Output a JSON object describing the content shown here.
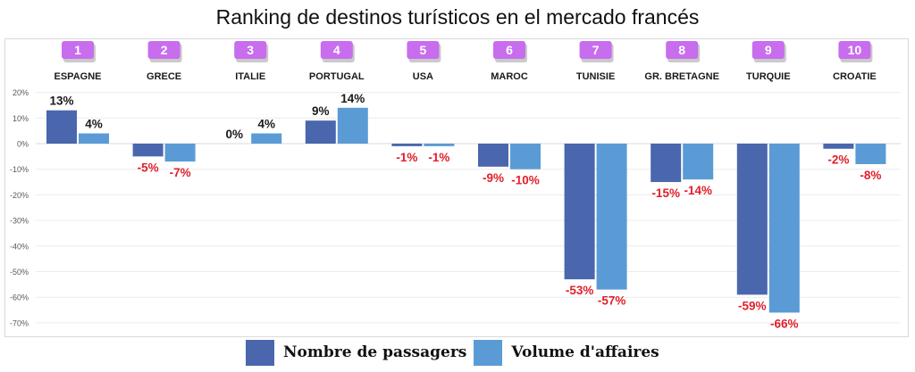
{
  "chart_data": {
    "type": "bar",
    "title": "Ranking de destinos turísticos en el mercado francés",
    "xlabel": "",
    "ylabel": "",
    "ylim": [
      -70,
      20
    ],
    "yticks": [
      20,
      10,
      0,
      -10,
      -20,
      -30,
      -40,
      -50,
      -60,
      -70
    ],
    "ytick_labels": [
      "20%",
      "10%",
      "0%",
      "-10%",
      "-20%",
      "-30%",
      "-40%",
      "-50%",
      "-60%",
      "-70%"
    ],
    "grid": true,
    "legend_position": "bottom",
    "categories": [
      "ESPAGNE",
      "GRECE",
      "ITALIE",
      "PORTUGAL",
      "USA",
      "MAROC",
      "TUNISIE",
      "GR. BRETAGNE",
      "TURQUIE",
      "CROATIE"
    ],
    "ranks": [
      "1",
      "2",
      "3",
      "4",
      "5",
      "6",
      "7",
      "8",
      "9",
      "10"
    ],
    "series": [
      {
        "name": "Nombre de passagers",
        "color": "#4a66ad",
        "values": [
          13,
          -5,
          0,
          9,
          -1,
          -9,
          -53,
          -15,
          -59,
          -2
        ],
        "labels": [
          "13%",
          "-5%",
          "0%",
          "9%",
          "-1%",
          "-9%",
          "-53%",
          "-15%",
          "-59%",
          "-2%"
        ]
      },
      {
        "name": "Volume d'affaires",
        "color": "#5b9bd5",
        "values": [
          4,
          -7,
          4,
          14,
          -1,
          -10,
          -57,
          -14,
          -66,
          -8
        ],
        "labels": [
          "4%",
          "-7%",
          "4%",
          "14%",
          "-1%",
          "-10%",
          "-57%",
          "-14%",
          "-66%",
          "-8%"
        ]
      }
    ],
    "colors": {
      "rank_badge": "#c86dee",
      "positive_label": "#1a1a1a",
      "negative_label": "#e0202a",
      "gridline": "#ececec",
      "axis_text": "#595959"
    }
  }
}
